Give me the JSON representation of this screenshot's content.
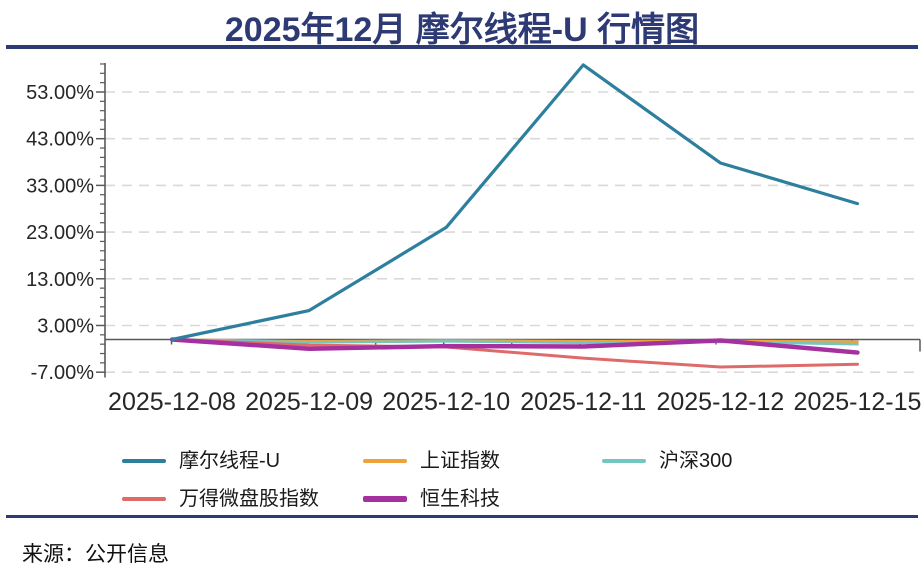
{
  "title": "2025年12月  摩尔线程-U  行情图",
  "source": "来源：公开信息",
  "chart_data": {
    "type": "line",
    "title": "2025年12月 摩尔线程-U 行情图",
    "categories": [
      "2025-12-08",
      "2025-12-09",
      "2025-12-10",
      "2025-12-11",
      "2025-12-12",
      "2025-12-15"
    ],
    "series": [
      {
        "name": "摩尔线程-U",
        "color": "#2e7f9e",
        "values": [
          0,
          6.2,
          24.0,
          58.8,
          37.8,
          29.1
        ]
      },
      {
        "name": "上证指数",
        "color": "#f0a23a",
        "values": [
          0,
          -0.4,
          -0.2,
          -0.4,
          -0.3,
          -0.5
        ]
      },
      {
        "name": "沪深300",
        "color": "#74c6c0",
        "values": [
          0,
          -0.6,
          -0.4,
          -0.7,
          -0.5,
          -1.0
        ]
      },
      {
        "name": "万得微盘股指数",
        "color": "#de6a6a",
        "values": [
          0,
          -1.2,
          -1.6,
          -4.0,
          -5.9,
          -5.3
        ]
      },
      {
        "name": "恒生科技",
        "color": "#a5309f",
        "values": [
          0,
          -2.0,
          -1.4,
          -1.5,
          -0.2,
          -2.8
        ]
      }
    ],
    "xlabel": "",
    "ylabel": "",
    "y_axis": {
      "format": "percent",
      "range": [
        -8.5,
        60
      ],
      "ticks": [
        {
          "label": "53.00%",
          "value": 53
        },
        {
          "label": "43.00%",
          "value": 43
        },
        {
          "label": "33.00%",
          "value": 33
        },
        {
          "label": "23.00%",
          "value": 23
        },
        {
          "label": "13.00%",
          "value": 13
        },
        {
          "label": "3.00%",
          "value": 3
        },
        {
          "label": "-7.00%",
          "value": -7
        }
      ]
    },
    "grid": "horizontal-dashed",
    "zero_line": true,
    "legend_position": "bottom"
  }
}
